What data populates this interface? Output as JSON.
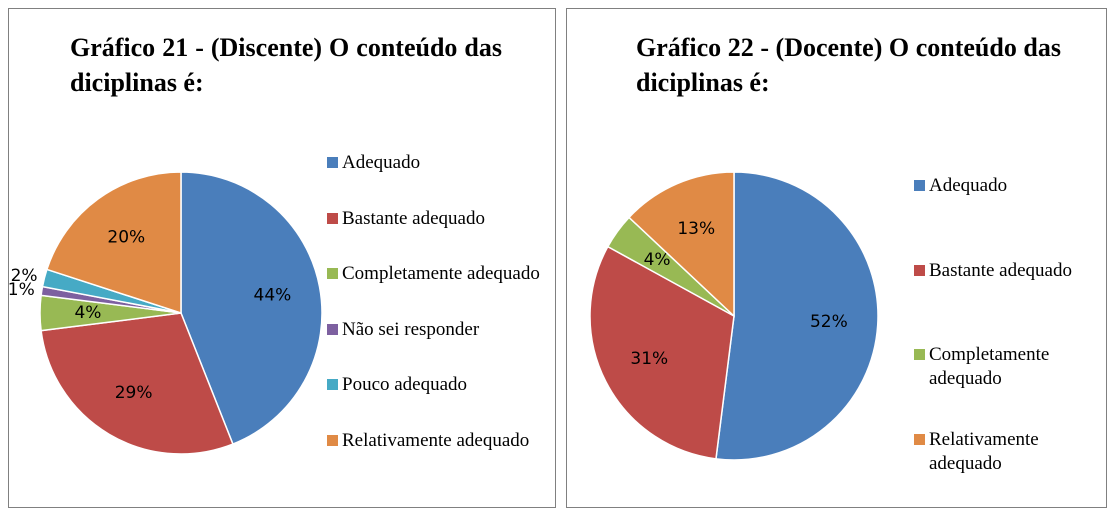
{
  "chart_data": [
    {
      "type": "pie",
      "title": "Gráfico 21 - (Discente) O conteúdo das diciplinas é:",
      "categories": [
        "Adequado",
        "Bastante adequado",
        "Completamente adequado",
        "Não sei responder",
        "Pouco adequado",
        "Relativamente adequado"
      ],
      "values": [
        44,
        29,
        4,
        1,
        2,
        20
      ],
      "value_labels": [
        "44%",
        "29%",
        "4%",
        "1%",
        "2%",
        "20%"
      ],
      "colors": [
        "#4a7ebb",
        "#be4b48",
        "#98b954",
        "#7d60a0",
        "#46aac5",
        "#e08a45"
      ]
    },
    {
      "type": "pie",
      "title": "Gráfico 22 - (Docente) O conteúdo das diciplinas é:",
      "categories": [
        "Adequado",
        "Bastante adequado",
        "Completamente adequado",
        "Relativamente adequado"
      ],
      "values": [
        52,
        31,
        4,
        13
      ],
      "value_labels": [
        "52%",
        "31%",
        "4%",
        "13%"
      ],
      "colors": [
        "#4a7ebb",
        "#be4b48",
        "#98b954",
        "#e08a45"
      ]
    }
  ]
}
